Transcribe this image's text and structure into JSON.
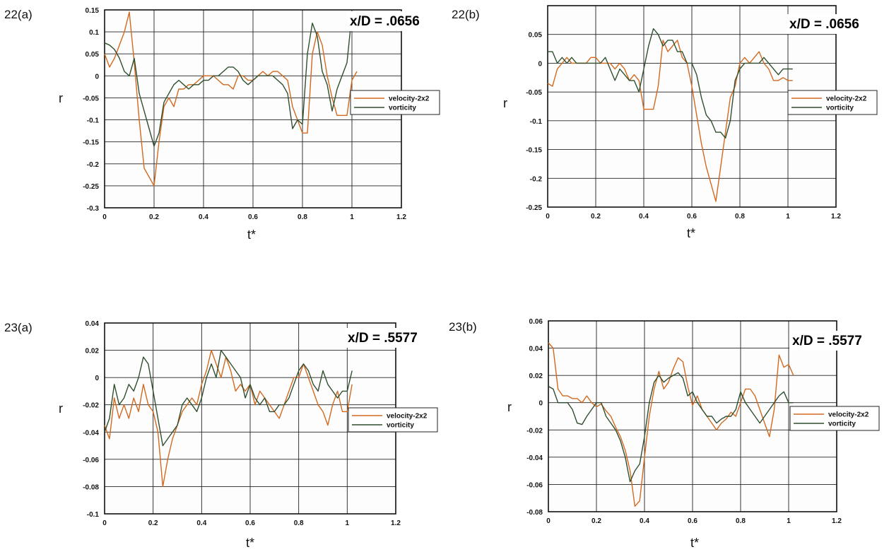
{
  "colors": {
    "velocity": "#d2691e",
    "vorticity": "#2f4f2f"
  },
  "chart_data": [
    {
      "type": "line",
      "panel_label": "22(a)",
      "annotation": "x/D = .0656",
      "xlabel": "t*",
      "ylabel": "r",
      "xlim": [
        0,
        1.2
      ],
      "ylim": [
        -0.3,
        0.15
      ],
      "xticks": [
        0,
        0.2,
        0.4,
        0.6,
        0.8,
        1,
        1.2
      ],
      "xtick_labels": [
        "0",
        "0.2",
        "0.4",
        "0.6",
        "0.8",
        "1",
        "1.2"
      ],
      "yticks": [
        -0.3,
        -0.25,
        -0.2,
        -0.15,
        -0.1,
        -0.05,
        0,
        0.05,
        0.1,
        0.15
      ],
      "ytick_labels": [
        "-0.3",
        "-0.25",
        "-0.2",
        "-0.15",
        "-0.1",
        "-0.05",
        "0",
        "0.05",
        "0.1",
        "0.15"
      ],
      "legend_position": "right",
      "grid": true,
      "series": [
        {
          "name": "velocity-2x2",
          "color_key": "velocity",
          "x": [
            0,
            0.02,
            0.04,
            0.06,
            0.08,
            0.1,
            0.12,
            0.14,
            0.16,
            0.18,
            0.2,
            0.22,
            0.24,
            0.26,
            0.28,
            0.3,
            0.32,
            0.34,
            0.36,
            0.38,
            0.4,
            0.42,
            0.44,
            0.46,
            0.48,
            0.5,
            0.52,
            0.54,
            0.56,
            0.58,
            0.6,
            0.62,
            0.64,
            0.66,
            0.68,
            0.7,
            0.72,
            0.74,
            0.76,
            0.78,
            0.8,
            0.82,
            0.84,
            0.86,
            0.88,
            0.9,
            0.92,
            0.94,
            0.96,
            0.98,
            1.0,
            1.02
          ],
          "y": [
            0.05,
            0.02,
            0.04,
            0.07,
            0.1,
            0.145,
            0.03,
            -0.1,
            -0.21,
            -0.23,
            -0.25,
            -0.15,
            -0.07,
            -0.05,
            -0.07,
            -0.03,
            -0.03,
            -0.02,
            -0.02,
            -0.01,
            0.0,
            0.0,
            0.0,
            -0.01,
            -0.02,
            -0.02,
            -0.03,
            0.0,
            0.0,
            -0.01,
            -0.01,
            0.0,
            0.01,
            0.0,
            0.01,
            0.01,
            0.0,
            -0.01,
            -0.07,
            -0.1,
            -0.13,
            -0.13,
            0.05,
            0.1,
            0.07,
            0.0,
            -0.05,
            -0.09,
            -0.09,
            -0.09,
            -0.01,
            0.01
          ]
        },
        {
          "name": "vorticity",
          "color_key": "vorticity",
          "x": [
            0,
            0.02,
            0.04,
            0.06,
            0.08,
            0.1,
            0.12,
            0.14,
            0.16,
            0.18,
            0.2,
            0.22,
            0.24,
            0.26,
            0.28,
            0.3,
            0.32,
            0.34,
            0.36,
            0.38,
            0.4,
            0.42,
            0.44,
            0.46,
            0.48,
            0.5,
            0.52,
            0.54,
            0.56,
            0.58,
            0.6,
            0.62,
            0.64,
            0.66,
            0.68,
            0.7,
            0.72,
            0.74,
            0.76,
            0.78,
            0.8,
            0.82,
            0.84,
            0.86,
            0.88,
            0.9,
            0.92,
            0.94,
            0.96,
            0.98,
            1.0
          ],
          "y": [
            0.075,
            0.07,
            0.06,
            0.04,
            0.01,
            0.0,
            0.04,
            -0.04,
            -0.08,
            -0.12,
            -0.16,
            -0.13,
            -0.06,
            -0.04,
            -0.02,
            -0.01,
            -0.02,
            -0.03,
            -0.02,
            -0.02,
            -0.01,
            -0.01,
            0.0,
            0.0,
            0.01,
            0.02,
            0.02,
            0.01,
            -0.01,
            -0.02,
            -0.01,
            0.0,
            0.0,
            0.0,
            0.0,
            -0.01,
            -0.02,
            -0.04,
            -0.12,
            -0.1,
            -0.11,
            0.05,
            0.12,
            0.09,
            0.01,
            -0.02,
            -0.08,
            -0.03,
            0.0,
            0.03,
            0.14
          ]
        }
      ]
    },
    {
      "type": "line",
      "panel_label": "22(b)",
      "annotation": "x/D = .0656",
      "xlabel": "t*",
      "ylabel": "r",
      "xlim": [
        0,
        1.2
      ],
      "ylim": [
        -0.25,
        0.1
      ],
      "xticks": [
        0,
        0.2,
        0.4,
        0.6,
        0.8,
        1,
        1.2
      ],
      "xtick_labels": [
        "0",
        "0.2",
        "0.4",
        "0.6",
        "0.8",
        "1",
        "1.2"
      ],
      "yticks": [
        -0.25,
        -0.2,
        -0.15,
        -0.1,
        -0.05,
        0,
        0.05
      ],
      "ytick_labels": [
        "-0.25",
        "-0.2",
        "-0.15",
        "-0.1",
        "-0.05",
        "0",
        "0.05"
      ],
      "legend_position": "right",
      "grid": true,
      "series": [
        {
          "name": "velocity-2x2",
          "color_key": "velocity",
          "x": [
            0,
            0.02,
            0.04,
            0.06,
            0.08,
            0.1,
            0.12,
            0.14,
            0.16,
            0.18,
            0.2,
            0.22,
            0.24,
            0.26,
            0.28,
            0.3,
            0.32,
            0.34,
            0.36,
            0.38,
            0.4,
            0.42,
            0.44,
            0.46,
            0.48,
            0.5,
            0.52,
            0.54,
            0.56,
            0.58,
            0.6,
            0.62,
            0.64,
            0.66,
            0.68,
            0.7,
            0.72,
            0.74,
            0.76,
            0.78,
            0.8,
            0.82,
            0.84,
            0.86,
            0.88,
            0.9,
            0.92,
            0.94,
            0.96,
            0.98,
            1.0,
            1.02
          ],
          "y": [
            -0.035,
            -0.04,
            -0.01,
            0.0,
            0.01,
            0.0,
            0.0,
            0.0,
            0.0,
            0.01,
            0.01,
            0.0,
            0.0,
            0.0,
            -0.01,
            0.0,
            -0.01,
            -0.03,
            -0.02,
            -0.03,
            -0.08,
            -0.08,
            -0.08,
            -0.04,
            0.04,
            0.02,
            0.03,
            0.04,
            0.01,
            0.0,
            -0.04,
            -0.09,
            -0.14,
            -0.18,
            -0.21,
            -0.24,
            -0.18,
            -0.12,
            -0.06,
            -0.04,
            0.0,
            0.01,
            0.0,
            0.01,
            0.02,
            0.0,
            -0.01,
            -0.03,
            -0.03,
            -0.025,
            -0.03,
            -0.03
          ]
        },
        {
          "name": "vorticity",
          "color_key": "vorticity",
          "x": [
            0,
            0.02,
            0.04,
            0.06,
            0.08,
            0.1,
            0.12,
            0.14,
            0.16,
            0.18,
            0.2,
            0.22,
            0.24,
            0.26,
            0.28,
            0.3,
            0.32,
            0.34,
            0.36,
            0.38,
            0.4,
            0.42,
            0.44,
            0.46,
            0.48,
            0.5,
            0.52,
            0.54,
            0.56,
            0.58,
            0.6,
            0.62,
            0.64,
            0.66,
            0.68,
            0.7,
            0.72,
            0.74,
            0.76,
            0.78,
            0.8,
            0.82,
            0.84,
            0.86,
            0.88,
            0.9,
            0.92,
            0.94,
            0.96,
            0.98,
            1.0,
            1.02
          ],
          "y": [
            0.02,
            0.02,
            0.0,
            0.01,
            0.0,
            0.01,
            0.0,
            0.0,
            0.0,
            0.0,
            0.0,
            0.0,
            0.01,
            -0.01,
            -0.03,
            -0.01,
            -0.02,
            -0.03,
            -0.03,
            -0.05,
            -0.01,
            0.03,
            0.06,
            0.05,
            0.03,
            0.04,
            0.04,
            0.02,
            0.02,
            0.0,
            0.0,
            -0.02,
            -0.06,
            -0.09,
            -0.1,
            -0.12,
            -0.12,
            -0.13,
            -0.1,
            -0.03,
            -0.01,
            0.0,
            0.0,
            0.0,
            0.0,
            0.01,
            0.0,
            -0.01,
            -0.02,
            -0.01,
            -0.01,
            -0.01
          ]
        }
      ]
    },
    {
      "type": "line",
      "panel_label": "23(a)",
      "annotation": "x/D = .5577",
      "xlabel": "t*",
      "ylabel": "r",
      "xlim": [
        0,
        1.2
      ],
      "ylim": [
        -0.1,
        0.04
      ],
      "xticks": [
        0,
        0.2,
        0.4,
        0.6,
        0.8,
        1,
        1.2
      ],
      "xtick_labels": [
        "0",
        "0.2",
        "0.4",
        "0.6",
        "0.8",
        "1",
        "1.2"
      ],
      "yticks": [
        -0.1,
        -0.08,
        -0.06,
        -0.04,
        -0.02,
        0,
        0.02,
        0.04
      ],
      "ytick_labels": [
        "-0.1",
        "-0.08",
        "-0.06",
        "-0.04",
        "-0.02",
        "0",
        "0.02",
        "0.04"
      ],
      "legend_position": "right",
      "grid": true,
      "series": [
        {
          "name": "velocity-2x2",
          "color_key": "velocity",
          "x": [
            0,
            0.02,
            0.04,
            0.06,
            0.08,
            0.1,
            0.12,
            0.14,
            0.16,
            0.18,
            0.2,
            0.22,
            0.24,
            0.26,
            0.28,
            0.3,
            0.32,
            0.34,
            0.36,
            0.38,
            0.4,
            0.42,
            0.44,
            0.46,
            0.48,
            0.5,
            0.52,
            0.54,
            0.56,
            0.58,
            0.6,
            0.62,
            0.64,
            0.66,
            0.68,
            0.7,
            0.72,
            0.74,
            0.76,
            0.78,
            0.8,
            0.82,
            0.84,
            0.86,
            0.88,
            0.9,
            0.92,
            0.94,
            0.96,
            0.98,
            1.0,
            1.02
          ],
          "y": [
            -0.035,
            -0.045,
            -0.015,
            -0.03,
            -0.02,
            -0.03,
            -0.015,
            -0.025,
            -0.005,
            -0.02,
            -0.025,
            -0.04,
            -0.08,
            -0.06,
            -0.045,
            -0.035,
            -0.025,
            -0.02,
            -0.015,
            -0.02,
            -0.005,
            0.005,
            0.02,
            0.01,
            0.0,
            0.015,
            0.005,
            -0.01,
            -0.005,
            -0.01,
            -0.005,
            -0.02,
            -0.01,
            -0.015,
            -0.02,
            -0.025,
            -0.03,
            -0.02,
            -0.01,
            0.0,
            0.0,
            0.01,
            0.0,
            -0.01,
            -0.02,
            -0.025,
            -0.035,
            -0.02,
            -0.01,
            -0.025,
            -0.025,
            -0.005
          ]
        },
        {
          "name": "vorticity",
          "color_key": "vorticity",
          "x": [
            0,
            0.02,
            0.04,
            0.06,
            0.08,
            0.1,
            0.12,
            0.14,
            0.16,
            0.18,
            0.2,
            0.22,
            0.24,
            0.26,
            0.28,
            0.3,
            0.32,
            0.34,
            0.36,
            0.38,
            0.4,
            0.42,
            0.44,
            0.46,
            0.48,
            0.5,
            0.52,
            0.54,
            0.56,
            0.58,
            0.6,
            0.62,
            0.64,
            0.66,
            0.68,
            0.7,
            0.72,
            0.74,
            0.76,
            0.78,
            0.8,
            0.82,
            0.84,
            0.86,
            0.88,
            0.9,
            0.92,
            0.94,
            0.96,
            0.98,
            1.0,
            1.02
          ],
          "y": [
            -0.04,
            -0.03,
            -0.005,
            -0.02,
            -0.015,
            -0.005,
            -0.01,
            0.0,
            0.015,
            0.01,
            -0.01,
            -0.03,
            -0.05,
            -0.045,
            -0.04,
            -0.035,
            -0.02,
            -0.015,
            -0.02,
            -0.025,
            -0.015,
            0.0,
            0.01,
            0.0,
            0.02,
            0.015,
            0.01,
            0.005,
            0.0,
            -0.015,
            -0.005,
            -0.015,
            -0.02,
            -0.015,
            -0.025,
            -0.025,
            -0.02,
            -0.02,
            -0.015,
            -0.005,
            0.005,
            0.01,
            0.005,
            -0.005,
            -0.01,
            0.005,
            -0.005,
            -0.01,
            -0.015,
            -0.01,
            -0.01,
            0.005
          ]
        }
      ]
    },
    {
      "type": "line",
      "panel_label": "23(b)",
      "annotation": "x/D = .5577",
      "xlabel": "t*",
      "ylabel": "r",
      "xlim": [
        0,
        1.2
      ],
      "ylim": [
        -0.08,
        0.06
      ],
      "xticks": [
        0,
        0.2,
        0.4,
        0.6,
        0.8,
        1,
        1.2
      ],
      "xtick_labels": [
        "0",
        "0.2",
        "0.4",
        "0.6",
        "0.8",
        "1",
        "1.2"
      ],
      "yticks": [
        -0.08,
        -0.06,
        -0.04,
        -0.02,
        0,
        0.02,
        0.04,
        0.06
      ],
      "ytick_labels": [
        "-0.08",
        "-0.06",
        "-0.04",
        "-0.02",
        "0",
        "0.02",
        "0.04",
        "0.06"
      ],
      "legend_position": "right",
      "grid": true,
      "series": [
        {
          "name": "velocity-2x2",
          "color_key": "velocity",
          "x": [
            0,
            0.02,
            0.04,
            0.06,
            0.08,
            0.1,
            0.12,
            0.14,
            0.16,
            0.18,
            0.2,
            0.22,
            0.24,
            0.26,
            0.28,
            0.3,
            0.32,
            0.34,
            0.36,
            0.38,
            0.4,
            0.42,
            0.44,
            0.46,
            0.48,
            0.5,
            0.52,
            0.54,
            0.56,
            0.58,
            0.6,
            0.62,
            0.64,
            0.66,
            0.68,
            0.7,
            0.72,
            0.74,
            0.76,
            0.78,
            0.8,
            0.82,
            0.84,
            0.86,
            0.88,
            0.9,
            0.92,
            0.94,
            0.96,
            0.98,
            1.0,
            1.02
          ],
          "y": [
            0.044,
            0.04,
            0.01,
            0.005,
            0.005,
            0.003,
            0.003,
            0.0,
            0.005,
            0.0,
            -0.003,
            -0.001,
            -0.006,
            -0.01,
            -0.018,
            -0.025,
            -0.035,
            -0.05,
            -0.076,
            -0.072,
            -0.04,
            -0.01,
            0.01,
            0.023,
            0.01,
            0.015,
            0.025,
            0.033,
            0.03,
            0.012,
            -0.002,
            0.005,
            -0.005,
            -0.01,
            -0.015,
            -0.02,
            -0.015,
            -0.012,
            -0.007,
            -0.01,
            0.0,
            0.01,
            0.01,
            0.005,
            -0.005,
            -0.015,
            -0.025,
            -0.005,
            0.035,
            0.026,
            0.028,
            0.02
          ]
        },
        {
          "name": "vorticity",
          "color_key": "vorticity",
          "x": [
            0,
            0.02,
            0.04,
            0.06,
            0.08,
            0.1,
            0.12,
            0.14,
            0.16,
            0.18,
            0.2,
            0.22,
            0.24,
            0.26,
            0.28,
            0.3,
            0.32,
            0.34,
            0.36,
            0.38,
            0.4,
            0.42,
            0.44,
            0.46,
            0.48,
            0.5,
            0.52,
            0.54,
            0.56,
            0.58,
            0.6,
            0.62,
            0.64,
            0.66,
            0.68,
            0.7,
            0.72,
            0.74,
            0.76,
            0.78,
            0.8,
            0.82,
            0.84,
            0.86,
            0.88,
            0.9,
            0.92,
            0.94,
            0.96,
            0.98,
            1.0,
            1.02
          ],
          "y": [
            0.012,
            0.01,
            0.0,
            0.0,
            0.0,
            -0.005,
            -0.015,
            -0.016,
            -0.01,
            -0.005,
            0.0,
            0.0,
            -0.01,
            -0.015,
            -0.02,
            -0.028,
            -0.04,
            -0.058,
            -0.05,
            -0.045,
            -0.025,
            0.0,
            0.015,
            0.02,
            0.015,
            0.018,
            0.02,
            0.022,
            0.018,
            0.005,
            0.008,
            0.0,
            -0.005,
            -0.01,
            -0.01,
            -0.015,
            -0.012,
            -0.01,
            -0.01,
            -0.005,
            0.008,
            0.0,
            -0.005,
            -0.01,
            -0.015,
            -0.01,
            -0.005,
            0.0,
            0.005,
            0.008,
            0.0,
            0.0
          ]
        }
      ]
    }
  ]
}
